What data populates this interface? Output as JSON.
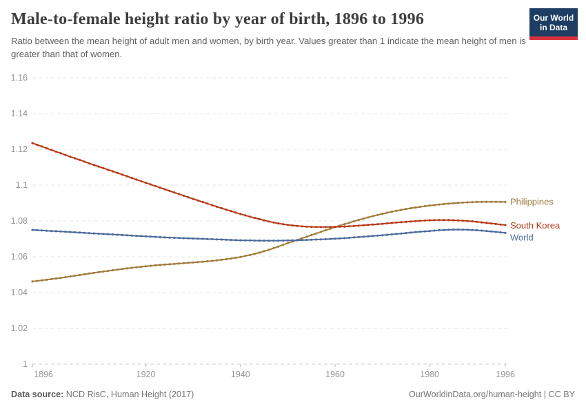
{
  "header": {
    "logo": {
      "line1": "Our World",
      "line2": "in Data",
      "bg_color": "#1d3d63",
      "stripe_color": "#dc2f3e"
    }
  },
  "chart_data": {
    "type": "line",
    "title": "Male-to-female height ratio by year of birth, 1896 to 1996",
    "subtitle": "Ratio between the mean height of adult men and women, by birth year. Values greater than 1 indicate the mean height of men is greater than that of women.",
    "xlabel": "",
    "ylabel": "",
    "xlim": [
      1896,
      1996
    ],
    "ylim": [
      1.0,
      1.16
    ],
    "grid": "horizontal-dashed",
    "legend_position": "right-of-line-ends",
    "marker": "dot-every-year",
    "xticks": [
      {
        "v": 1896,
        "label": "1896"
      },
      {
        "v": 1920,
        "label": "1920"
      },
      {
        "v": 1940,
        "label": "1940"
      },
      {
        "v": 1960,
        "label": "1960"
      },
      {
        "v": 1980,
        "label": "1980"
      },
      {
        "v": 1996,
        "label": "1996"
      }
    ],
    "yticks": [
      {
        "v": 1.0,
        "label": "1"
      },
      {
        "v": 1.02,
        "label": "1.02"
      },
      {
        "v": 1.04,
        "label": "1.04"
      },
      {
        "v": 1.06,
        "label": "1.06"
      },
      {
        "v": 1.08,
        "label": "1.08"
      },
      {
        "v": 1.1,
        "label": "1.1"
      },
      {
        "v": 1.12,
        "label": "1.12"
      },
      {
        "v": 1.14,
        "label": "1.14"
      },
      {
        "v": 1.16,
        "label": "1.16"
      }
    ],
    "x": [
      1896,
      1898,
      1900,
      1902,
      1904,
      1906,
      1908,
      1910,
      1912,
      1914,
      1916,
      1918,
      1920,
      1922,
      1924,
      1926,
      1928,
      1930,
      1932,
      1934,
      1936,
      1938,
      1940,
      1942,
      1944,
      1946,
      1948,
      1950,
      1952,
      1954,
      1956,
      1958,
      1960,
      1962,
      1964,
      1966,
      1968,
      1970,
      1972,
      1974,
      1976,
      1978,
      1980,
      1982,
      1984,
      1986,
      1988,
      1990,
      1992,
      1994,
      1996
    ],
    "series": [
      {
        "name": "Philippines",
        "color": "#A07B3C",
        "values": [
          1.0462,
          1.0468,
          1.0475,
          1.0482,
          1.049,
          1.0498,
          1.0506,
          1.0514,
          1.0521,
          1.0528,
          1.0535,
          1.0541,
          1.0547,
          1.0552,
          1.0556,
          1.056,
          1.0564,
          1.0568,
          1.0572,
          1.0577,
          1.0583,
          1.059,
          1.0599,
          1.061,
          1.0623,
          1.0639,
          1.0657,
          1.0676,
          1.0694,
          1.0712,
          1.073,
          1.0748,
          1.0766,
          1.0782,
          1.0798,
          1.0813,
          1.0827,
          1.084,
          1.0852,
          1.0862,
          1.0871,
          1.0879,
          1.0886,
          1.0892,
          1.0897,
          1.0901,
          1.0904,
          1.0906,
          1.0907,
          1.0907,
          1.0906
        ]
      },
      {
        "name": "South Korea",
        "color": "#B63A1B",
        "values": [
          1.1235,
          1.1216,
          1.1197,
          1.1178,
          1.1159,
          1.1141,
          1.1122,
          1.1104,
          1.1086,
          1.1068,
          1.105,
          1.1031,
          1.1013,
          1.0995,
          1.0977,
          1.0959,
          1.0941,
          1.0923,
          1.0906,
          1.0888,
          1.0871,
          1.0855,
          1.0839,
          1.0824,
          1.081,
          1.0797,
          1.0786,
          1.0778,
          1.0772,
          1.0768,
          1.0766,
          1.0766,
          1.0767,
          1.0769,
          1.0772,
          1.0776,
          1.078,
          1.0784,
          1.0789,
          1.0793,
          1.0797,
          1.0801,
          1.0804,
          1.0805,
          1.0805,
          1.0803,
          1.08,
          1.0795,
          1.0789,
          1.0783,
          1.0777
        ]
      },
      {
        "name": "World",
        "color": "#4C6A9C",
        "values": [
          1.075,
          1.0747,
          1.0744,
          1.0741,
          1.0738,
          1.0735,
          1.0732,
          1.0729,
          1.0726,
          1.0723,
          1.072,
          1.0717,
          1.0714,
          1.0711,
          1.0708,
          1.0706,
          1.0704,
          1.0702,
          1.07,
          1.0698,
          1.0696,
          1.0694,
          1.0692,
          1.0691,
          1.069,
          1.069,
          1.069,
          1.0691,
          1.0692,
          1.0694,
          1.0696,
          1.0698,
          1.0701,
          1.0704,
          1.0708,
          1.0712,
          1.0716,
          1.072,
          1.0725,
          1.073,
          1.0735,
          1.074,
          1.0744,
          1.0748,
          1.0751,
          1.0752,
          1.0751,
          1.0748,
          1.0744,
          1.0739,
          1.0733
        ]
      }
    ]
  },
  "footer": {
    "source_label": "Data source:",
    "source_text": " NCD RisC, Human Height (2017)",
    "credit": "OurWorldinData.org/human-height | CC BY"
  }
}
